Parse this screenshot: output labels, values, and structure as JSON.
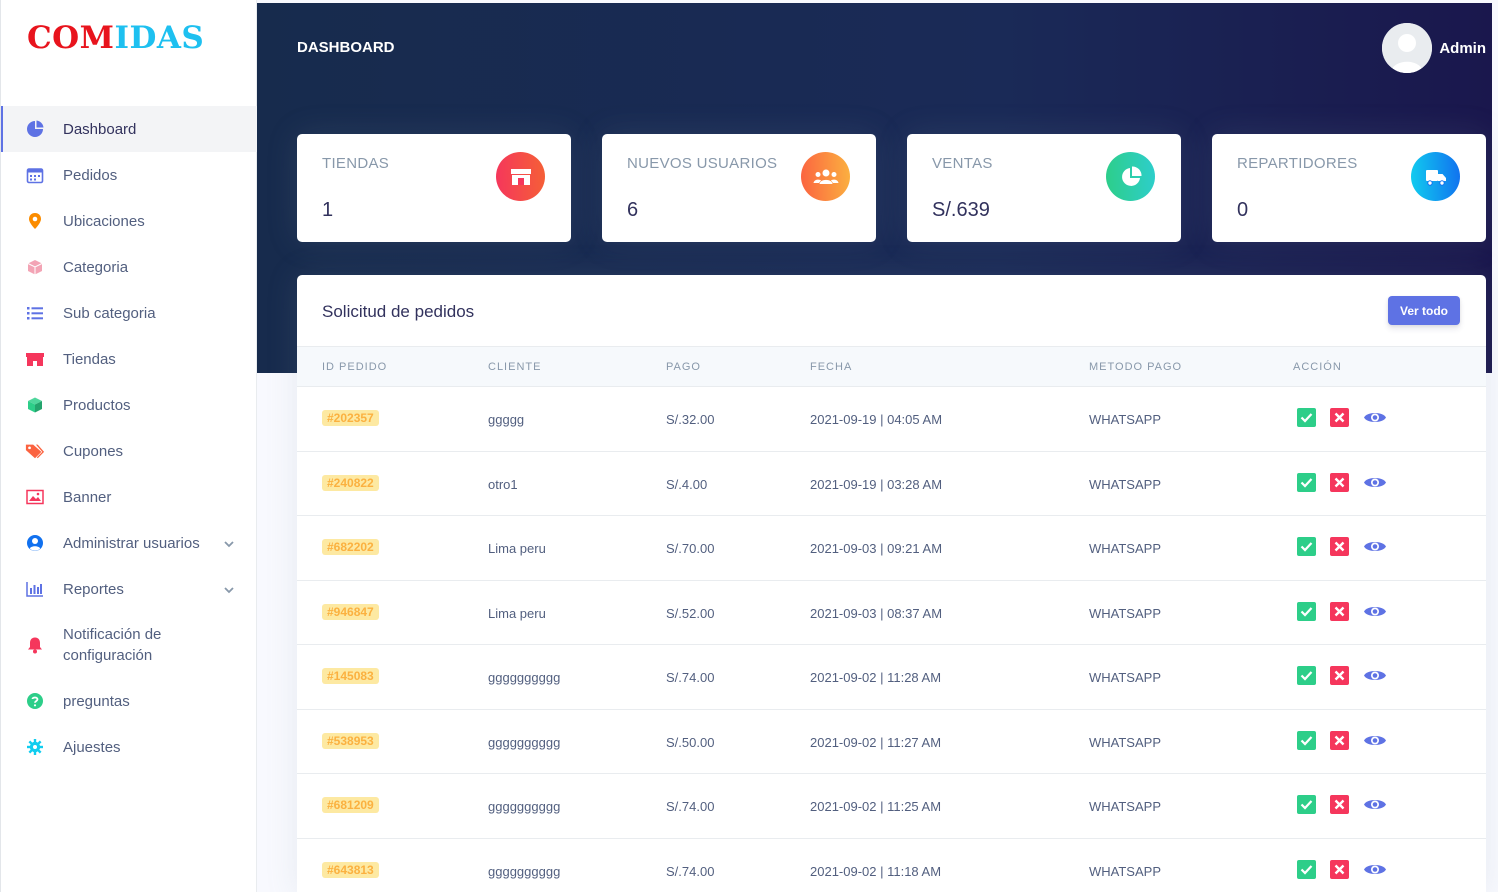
{
  "brand": {
    "part1": "COM",
    "part2": "IDAS"
  },
  "header": {
    "title": "DASHBOARD",
    "user": "Admin"
  },
  "sidebar": {
    "items": [
      {
        "label": "Dashboard",
        "icon": "pie-chart-icon",
        "color": "#5e72e4"
      },
      {
        "label": "Pedidos",
        "icon": "calendar-icon",
        "color": "#5e72e4"
      },
      {
        "label": "Ubicaciones",
        "icon": "map-pin-icon",
        "color": "#fb6340"
      },
      {
        "label": "Categoria",
        "icon": "box-icon",
        "color": "#f3a4b5"
      },
      {
        "label": "Sub categoria",
        "icon": "list-icon",
        "color": "#5e72e4"
      },
      {
        "label": "Tiendas",
        "icon": "shop-icon",
        "color": "#f5365c"
      },
      {
        "label": "Productos",
        "icon": "cube-icon",
        "color": "#2dce89"
      },
      {
        "label": "Cupones",
        "icon": "tag-icon",
        "color": "#fb6340"
      },
      {
        "label": "Banner",
        "icon": "image-icon",
        "color": "#f5365c"
      },
      {
        "label": "Administrar usuarios",
        "icon": "user-circle-icon",
        "color": "#1171ef"
      },
      {
        "label": "Reportes",
        "icon": "bar-chart-icon",
        "color": "#5e72e4"
      },
      {
        "label": "Notificación de configuración",
        "icon": "bell-icon",
        "color": "#f5365c"
      },
      {
        "label": "preguntas",
        "icon": "question-icon",
        "color": "#2dce89"
      },
      {
        "label": "Ajuestes",
        "icon": "gear-icon",
        "color": "#11cdef"
      }
    ]
  },
  "stats": [
    {
      "title": "TIENDAS",
      "value": "1",
      "icon": "shop-icon",
      "color": "#f5365c"
    },
    {
      "title": "NUEVOS USUARIOS",
      "value": "6",
      "icon": "users-icon",
      "color": "#fb6340"
    },
    {
      "title": "VENTAS",
      "value": "S/.639",
      "icon": "pie-chart-icon",
      "color": "#2dce89"
    },
    {
      "title": "REPARTIDORES",
      "value": "0",
      "icon": "truck-icon",
      "color": "#11cdef"
    }
  ],
  "orders": {
    "title": "Solicitud de pedidos",
    "view_all": "Ver todo",
    "columns": [
      "ID PEDIDO",
      "CLIENTE",
      "PAGO",
      "FECHA",
      "METODO PAGO",
      "ACCIÓN"
    ],
    "rows": [
      {
        "id": "#202357",
        "client": "ggggg",
        "amount": "S/.32.00",
        "date": "2021-09-19 | 04:05 AM",
        "method": "WHATSAPP"
      },
      {
        "id": "#240822",
        "client": "otro1",
        "amount": "S/.4.00",
        "date": "2021-09-19 | 03:28 AM",
        "method": "WHATSAPP"
      },
      {
        "id": "#682202",
        "client": "Lima peru",
        "amount": "S/.70.00",
        "date": "2021-09-03 | 09:21 AM",
        "method": "WHATSAPP"
      },
      {
        "id": "#946847",
        "client": "Lima peru",
        "amount": "S/.52.00",
        "date": "2021-09-03 | 08:37 AM",
        "method": "WHATSAPP"
      },
      {
        "id": "#145083",
        "client": "gggggggggg",
        "amount": "S/.74.00",
        "date": "2021-09-02 | 11:28 AM",
        "method": "WHATSAPP"
      },
      {
        "id": "#538953",
        "client": "gggggggggg",
        "amount": "S/.50.00",
        "date": "2021-09-02 | 11:27 AM",
        "method": "WHATSAPP"
      },
      {
        "id": "#681209",
        "client": "gggggggggg",
        "amount": "S/.74.00",
        "date": "2021-09-02 | 11:25 AM",
        "method": "WHATSAPP"
      },
      {
        "id": "#643813",
        "client": "gggggggggg",
        "amount": "S/.74.00",
        "date": "2021-09-02 | 11:18 AM",
        "method": "WHATSAPP"
      }
    ]
  }
}
